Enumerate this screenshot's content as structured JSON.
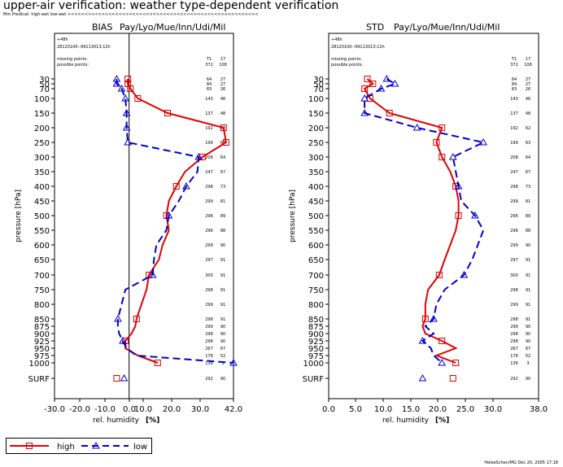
{
  "title": "upper-air verification: weather type-dependent verification",
  "subtitle": "Mm Predicat: high-wet low-wet <<<<<<<<<<<<<<<<<<<<<<<<<<<<<<<<<<<<<<<<<<<<<<<<<<<<<<<<",
  "footer": "HeleeSchen/MG Dec 20, 2005 17:18",
  "colors": {
    "high": "#e00000",
    "low": "#0000cc",
    "axis": "#000000"
  },
  "levels": [
    "30",
    "50",
    "70",
    "100",
    "150",
    "200",
    "250",
    "300",
    "350",
    "400",
    "450",
    "500",
    "550",
    "600",
    "650",
    "700",
    "750",
    "800",
    "850",
    "875",
    "900",
    "925",
    "950",
    "975",
    "1000",
    "SURF"
  ],
  "level_values": [
    30,
    50,
    70,
    100,
    150,
    200,
    250,
    300,
    350,
    400,
    450,
    500,
    550,
    600,
    650,
    700,
    750,
    800,
    850,
    875,
    900,
    925,
    950,
    975,
    1000,
    "SURF"
  ],
  "legend": [
    {
      "label": "high",
      "marker": "square",
      "style": "solid"
    },
    {
      "label": "low",
      "marker": "triangle",
      "style": "dashed"
    }
  ],
  "chart_data": [
    {
      "type": "line",
      "panel": "BIAS",
      "region": "Pay/Lyo/Mue/Inn/Udi/Mil",
      "lead": "+48h",
      "period": "28120100--99113013:12h",
      "missing_label": "missing points:",
      "possible_label": "possible points:",
      "missing": [
        "T1",
        "17"
      ],
      "possible": [
        "372",
        "108"
      ],
      "xlabel": "rel. humidity",
      "xunit": "[%]",
      "ylabel": "pressure [hPa]",
      "xlim": [
        -30,
        42
      ],
      "xticks": [
        "-30.0",
        "-20.0",
        "-10.0",
        "0.0",
        "10.0",
        "20.0",
        "30.0",
        "42.0"
      ],
      "xtick_values": [
        -30,
        -20,
        -10,
        0,
        10,
        20,
        30,
        42
      ],
      "y": [
        30,
        50,
        70,
        100,
        150,
        200,
        250,
        300,
        350,
        400,
        450,
        500,
        550,
        600,
        650,
        700,
        750,
        800,
        850,
        875,
        900,
        925,
        950,
        975,
        1000,
        "SURF"
      ],
      "counts": [
        [
          "64",
          "27"
        ],
        [
          "84",
          "27"
        ],
        [
          "83",
          "26"
        ],
        [
          "143",
          "46"
        ],
        [
          "137",
          "48"
        ],
        [
          "192",
          "62"
        ],
        [
          "199",
          "63"
        ],
        [
          "208",
          "64"
        ],
        [
          "247",
          "67"
        ],
        [
          "298",
          "73"
        ],
        [
          "299",
          "81"
        ],
        [
          "296",
          "89"
        ],
        [
          "296",
          "88"
        ],
        [
          "299",
          "90"
        ],
        [
          "297",
          "91"
        ],
        [
          "300",
          "91"
        ],
        [
          "298",
          "91"
        ],
        [
          "299",
          "91"
        ],
        [
          "298",
          "91"
        ],
        [
          "299",
          "90"
        ],
        [
          "298",
          "90"
        ],
        [
          "298",
          "90"
        ],
        [
          "267",
          "67"
        ],
        [
          "178",
          "52"
        ],
        [
          "136",
          "3"
        ],
        [
          "292",
          "90"
        ]
      ],
      "series": [
        {
          "name": "high",
          "values": [
            -0.5,
            -0.5,
            0.5,
            3.5,
            15.5,
            38,
            39,
            29.5,
            22.5,
            19,
            16,
            15,
            16,
            13.5,
            12,
            8,
            7,
            5,
            3,
            2.5,
            1,
            -1.5,
            -1.5,
            3.5,
            11.5,
            -5
          ]
        },
        {
          "name": "low",
          "values": [
            -5,
            -5,
            -3,
            -1.5,
            -1,
            -1,
            -0.5,
            28,
            27.5,
            23,
            20,
            16,
            15,
            11,
            10,
            9.5,
            -1.5,
            -3,
            -4.5,
            -4.5,
            -4,
            -2.5,
            -1,
            3,
            42,
            -2
          ]
        }
      ]
    },
    {
      "type": "line",
      "panel": "STD",
      "region": "Pay/Lyo/Mue/Inn/Udi/Mil",
      "lead": "+48h",
      "period": "28120100--99113013:12h",
      "missing_label": "missing points:",
      "possible_label": "possible points:",
      "missing": [
        "T1",
        "17"
      ],
      "possible": [
        "372",
        "108"
      ],
      "xlabel": "rel. humidity",
      "xunit": "[%]",
      "ylabel": "pressure [hPa]",
      "xlim": [
        0,
        38
      ],
      "xticks": [
        "0.0",
        "5.0",
        "10.0",
        "15.0",
        "20.0",
        "25.0",
        "30.0",
        "38.0"
      ],
      "xtick_values": [
        0,
        5,
        10,
        15,
        20,
        25,
        30,
        38
      ],
      "y": [
        30,
        50,
        70,
        100,
        150,
        200,
        250,
        300,
        350,
        400,
        450,
        500,
        550,
        600,
        650,
        700,
        750,
        800,
        850,
        875,
        900,
        925,
        950,
        975,
        1000,
        "SURF"
      ],
      "counts": [
        [
          "64",
          "27"
        ],
        [
          "84",
          "27"
        ],
        [
          "83",
          "26"
        ],
        [
          "143",
          "46"
        ],
        [
          "137",
          "48"
        ],
        [
          "192",
          "62"
        ],
        [
          "199",
          "63"
        ],
        [
          "208",
          "64"
        ],
        [
          "247",
          "67"
        ],
        [
          "298",
          "73"
        ],
        [
          "299",
          "81"
        ],
        [
          "296",
          "89"
        ],
        [
          "296",
          "88"
        ],
        [
          "299",
          "90"
        ],
        [
          "297",
          "91"
        ],
        [
          "300",
          "91"
        ],
        [
          "298",
          "91"
        ],
        [
          "299",
          "91"
        ],
        [
          "298",
          "91"
        ],
        [
          "299",
          "90"
        ],
        [
          "298",
          "90"
        ],
        [
          "298",
          "90"
        ],
        [
          "267",
          "67"
        ],
        [
          "178",
          "52"
        ],
        [
          "136",
          "3"
        ],
        [
          "292",
          "90"
        ]
      ],
      "series": [
        {
          "name": "high",
          "values": [
            7,
            8,
            6.5,
            7.5,
            11,
            20.5,
            19.5,
            20.5,
            22,
            23,
            23.5,
            23.5,
            23,
            22,
            21,
            20,
            18,
            17.5,
            17.5,
            17,
            17.5,
            20.5,
            23,
            19.5,
            23,
            22.5
          ]
        },
        {
          "name": "low",
          "values": [
            10.5,
            12,
            9.5,
            6.5,
            6.5,
            16,
            28,
            22.5,
            23,
            23.5,
            24,
            26.5,
            28,
            27,
            26,
            24.5,
            21,
            19.5,
            19,
            17.5,
            19,
            17,
            18.5,
            19,
            20.5,
            17
          ]
        }
      ]
    }
  ]
}
